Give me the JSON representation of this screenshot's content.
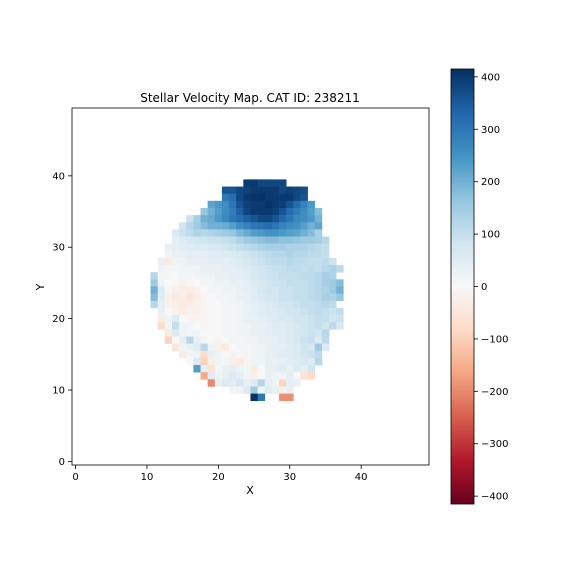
{
  "chart_data": {
    "type": "heatmap",
    "title": "Stellar Velocity Map. CAT ID: 238211",
    "xlabel": "X",
    "ylabel": "Y",
    "xlim": [
      -0.5,
      49.5
    ],
    "ylim": [
      -0.5,
      49.5
    ],
    "x_ticks": [
      "0",
      "10",
      "20",
      "30",
      "40"
    ],
    "y_ticks": [
      "0",
      "10",
      "20",
      "30",
      "40"
    ],
    "colormap": "RdBu",
    "colorbar": {
      "range": [
        -415,
        415
      ],
      "ticks": [
        "400",
        "300",
        "200",
        "100",
        "0",
        "−100",
        "−200",
        "−300",
        "−400"
      ]
    },
    "grid": false,
    "description_of_values": "Per-pixel line-of-sight stellar velocity (colorbar units). Rows listed from y=39 (top) down to y=9; each row gives the starting x column and consecutive values.",
    "rows": [
      {
        "y": 39,
        "x0": 24,
        "values": [
          400,
          400,
          380,
          380,
          380,
          380
        ]
      },
      {
        "y": 38,
        "x0": 21,
        "values": [
          360,
          360,
          380,
          390,
          400,
          400,
          400,
          400,
          380,
          390,
          380,
          370
        ]
      },
      {
        "y": 37,
        "x0": 21,
        "values": [
          300,
          320,
          380,
          400,
          410,
          410,
          400,
          400,
          400,
          400,
          380,
          360
        ]
      },
      {
        "y": 36,
        "x0": 19,
        "values": [
          220,
          240,
          260,
          300,
          360,
          390,
          400,
          400,
          410,
          400,
          390,
          360,
          320,
          280,
          240
        ]
      },
      {
        "y": 35,
        "x0": 18,
        "values": [
          160,
          200,
          230,
          260,
          290,
          340,
          380,
          400,
          400,
          400,
          390,
          360,
          320,
          290,
          260,
          230,
          180
        ]
      },
      {
        "y": 34,
        "x0": 16,
        "values": [
          90,
          140,
          200,
          210,
          240,
          270,
          300,
          320,
          340,
          360,
          380,
          380,
          360,
          330,
          300,
          270,
          260,
          240,
          200
        ]
      },
      {
        "y": 33,
        "x0": 15,
        "values": [
          80,
          120,
          150,
          180,
          200,
          200,
          210,
          230,
          260,
          280,
          300,
          310,
          320,
          300,
          280,
          260,
          250,
          230,
          200,
          220
        ]
      },
      {
        "y": 32,
        "x0": 14,
        "values": [
          60,
          90,
          110,
          130,
          120,
          130,
          140,
          150,
          160,
          190,
          210,
          230,
          240,
          250,
          250,
          240,
          230,
          220,
          200,
          180,
          140
        ]
      },
      {
        "y": 31,
        "x0": 14,
        "values": [
          40,
          60,
          70,
          80,
          80,
          90,
          90,
          100,
          110,
          130,
          150,
          160,
          170,
          180,
          180,
          170,
          170,
          160,
          150,
          150,
          140,
          120
        ]
      },
      {
        "y": 30,
        "x0": 13,
        "values": [
          30,
          40,
          50,
          50,
          60,
          60,
          70,
          70,
          80,
          90,
          100,
          110,
          120,
          130,
          140,
          140,
          140,
          130,
          130,
          130,
          120,
          110,
          100
        ]
      },
      {
        "y": 29,
        "x0": 13,
        "values": [
          20,
          30,
          30,
          40,
          40,
          40,
          50,
          50,
          60,
          60,
          70,
          80,
          90,
          100,
          110,
          120,
          120,
          130,
          120,
          120,
          110,
          110,
          100
        ]
      },
      {
        "y": 28,
        "x0": 12,
        "values": [
          30,
          -40,
          20,
          20,
          30,
          30,
          30,
          40,
          40,
          40,
          50,
          60,
          70,
          80,
          90,
          100,
          110,
          110,
          120,
          110,
          110,
          100,
          100,
          110,
          90
        ]
      },
      {
        "y": 27,
        "x0": 12,
        "values": [
          20,
          10,
          10,
          20,
          20,
          20,
          30,
          30,
          30,
          40,
          40,
          50,
          60,
          70,
          80,
          90,
          100,
          100,
          110,
          110,
          100,
          110,
          100,
          120,
          130,
          110
        ]
      },
      {
        "y": 26,
        "x0": 11,
        "values": [
          120,
          10,
          10,
          0,
          10,
          10,
          20,
          20,
          20,
          30,
          30,
          40,
          40,
          50,
          70,
          80,
          90,
          90,
          100,
          100,
          100,
          110,
          110,
          120,
          140,
          130
        ]
      },
      {
        "y": 25,
        "x0": 11,
        "values": [
          150,
          20,
          0,
          -10,
          -20,
          -10,
          0,
          10,
          10,
          20,
          20,
          30,
          30,
          40,
          60,
          70,
          80,
          90,
          90,
          100,
          100,
          100,
          110,
          120,
          140,
          150,
          180
        ]
      },
      {
        "y": 24,
        "x0": 11,
        "values": [
          200,
          60,
          -10,
          -20,
          -30,
          -30,
          -20,
          0,
          10,
          10,
          20,
          20,
          30,
          40,
          50,
          70,
          80,
          80,
          90,
          90,
          100,
          100,
          110,
          120,
          130,
          150,
          200
        ]
      },
      {
        "y": 23,
        "x0": 11,
        "values": [
          180,
          50,
          -20,
          -40,
          -30,
          -50,
          -30,
          -10,
          0,
          10,
          10,
          20,
          30,
          30,
          50,
          60,
          70,
          80,
          90,
          90,
          100,
          100,
          110,
          120,
          140,
          130,
          160
        ]
      },
      {
        "y": 22,
        "x0": 11,
        "values": [
          120,
          40,
          -20,
          -30,
          -40,
          -30,
          -20,
          -10,
          0,
          0,
          10,
          10,
          20,
          30,
          40,
          50,
          60,
          70,
          80,
          80,
          90,
          100,
          100,
          110,
          120,
          110
        ]
      },
      {
        "y": 21,
        "x0": 12,
        "values": [
          30,
          0,
          -20,
          -30,
          -20,
          -20,
          -10,
          0,
          0,
          10,
          10,
          20,
          30,
          40,
          50,
          60,
          60,
          70,
          80,
          80,
          90,
          100,
          110,
          100,
          90,
          100
        ]
      },
      {
        "y": 20,
        "x0": 12,
        "values": [
          -30,
          20,
          60,
          0,
          -10,
          -10,
          -10,
          0,
          0,
          10,
          10,
          20,
          30,
          30,
          40,
          50,
          60,
          70,
          70,
          80,
          80,
          90,
          100,
          100,
          80,
          90
        ]
      },
      {
        "y": 19,
        "x0": 12,
        "values": [
          -80,
          10,
          100,
          20,
          10,
          0,
          -10,
          0,
          0,
          10,
          10,
          20,
          20,
          30,
          30,
          40,
          50,
          50,
          60,
          70,
          80,
          90,
          100,
          80,
          110,
          70
        ]
      },
      {
        "y": 18,
        "x0": 13,
        "values": [
          -40,
          60,
          20,
          10,
          10,
          0,
          0,
          0,
          10,
          10,
          20,
          20,
          30,
          30,
          40,
          50,
          50,
          60,
          70,
          80,
          90,
          80,
          120
        ]
      },
      {
        "y": 17,
        "x0": 13,
        "values": [
          -90,
          0,
          40,
          120,
          30,
          10,
          0,
          -10,
          0,
          10,
          10,
          20,
          20,
          30,
          30,
          40,
          50,
          60,
          70,
          90,
          100,
          60,
          110
        ]
      },
      {
        "y": 16,
        "x0": 14,
        "values": [
          -50,
          20,
          30,
          50,
          120,
          20,
          -20,
          -40,
          0,
          10,
          10,
          20,
          20,
          30,
          40,
          40,
          50,
          60,
          80,
          70,
          150,
          60
        ]
      },
      {
        "y": 15,
        "x0": 15,
        "values": [
          -40,
          10,
          20,
          -80,
          30,
          20,
          0,
          10,
          0,
          10,
          20,
          20,
          30,
          40,
          50,
          50,
          60,
          80,
          90,
          110
        ]
      },
      {
        "y": 14,
        "x0": 16,
        "values": [
          0,
          60,
          -100,
          -30,
          20,
          10,
          -20,
          -40,
          -10,
          20,
          20,
          30,
          30,
          40,
          50,
          60,
          70,
          50,
          120
        ]
      },
      {
        "y": 13,
        "x0": 17,
        "values": [
          230,
          40,
          -60,
          10,
          30,
          40,
          20,
          10,
          -40,
          0,
          30,
          40,
          50,
          30,
          60,
          40,
          80
        ]
      },
      {
        "y": 12,
        "x0": 18,
        "values": [
          -160,
          50,
          20,
          30,
          60,
          40,
          10,
          -20,
          0,
          30,
          20,
          10,
          40,
          0,
          -60,
          -80
        ]
      },
      {
        "y": 11,
        "x0": 19,
        "values": [
          -200,
          30,
          60,
          50,
          80,
          30,
          50,
          120,
          40,
          20,
          -90,
          40,
          30
        ]
      },
      {
        "y": 10,
        "x0": 22,
        "values": [
          10,
          20,
          60,
          150,
          20,
          50,
          30,
          -20,
          30
        ]
      },
      {
        "y": 9,
        "x0": 25,
        "values": [
          415,
          300,
          null,
          null,
          -190,
          -190
        ]
      }
    ]
  }
}
